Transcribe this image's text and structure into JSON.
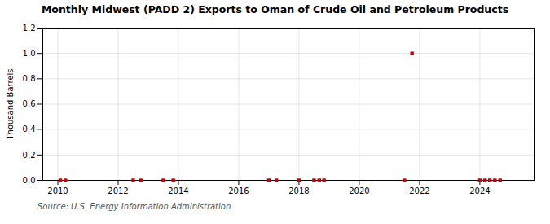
{
  "chart_data": {
    "type": "scatter",
    "title": "Monthly Midwest (PADD 2) Exports to Oman of Crude Oil and Petroleum Products",
    "ylabel": "Thousand Barrels",
    "source": "Source: U.S. Energy Information Administration",
    "x": [
      2010.08,
      2010.25,
      2012.5,
      2012.75,
      2013.5,
      2013.83,
      2017.0,
      2017.25,
      2018.0,
      2018.5,
      2018.67,
      2018.83,
      2021.5,
      2021.75,
      2024.0,
      2024.17,
      2024.33,
      2024.5,
      2024.67
    ],
    "values": [
      0.0,
      0.0,
      0.0,
      0.0,
      0.0,
      0.0,
      0.0,
      0.0,
      0.0,
      0.0,
      0.0,
      0.0,
      0.0,
      1.0,
      0.0,
      0.0,
      0.0,
      0.0,
      0.0
    ],
    "color": "#cc0000",
    "marker": "square",
    "xlim": [
      2009.5,
      2025.8
    ],
    "xticks": [
      2010,
      2012,
      2014,
      2016,
      2018,
      2020,
      2022,
      2024
    ],
    "ylim": [
      0.0,
      1.2
    ],
    "yticks": [
      {
        "value": 0.0,
        "label": "0.0"
      },
      {
        "value": 0.2,
        "label": "0.2"
      },
      {
        "value": 0.4,
        "label": "0.4"
      },
      {
        "value": 0.6,
        "label": "0.6"
      },
      {
        "value": 0.8,
        "label": "0.8"
      },
      {
        "value": 1.0,
        "label": "1.0"
      },
      {
        "value": 1.2,
        "label": "1.2"
      }
    ],
    "grid": true
  }
}
